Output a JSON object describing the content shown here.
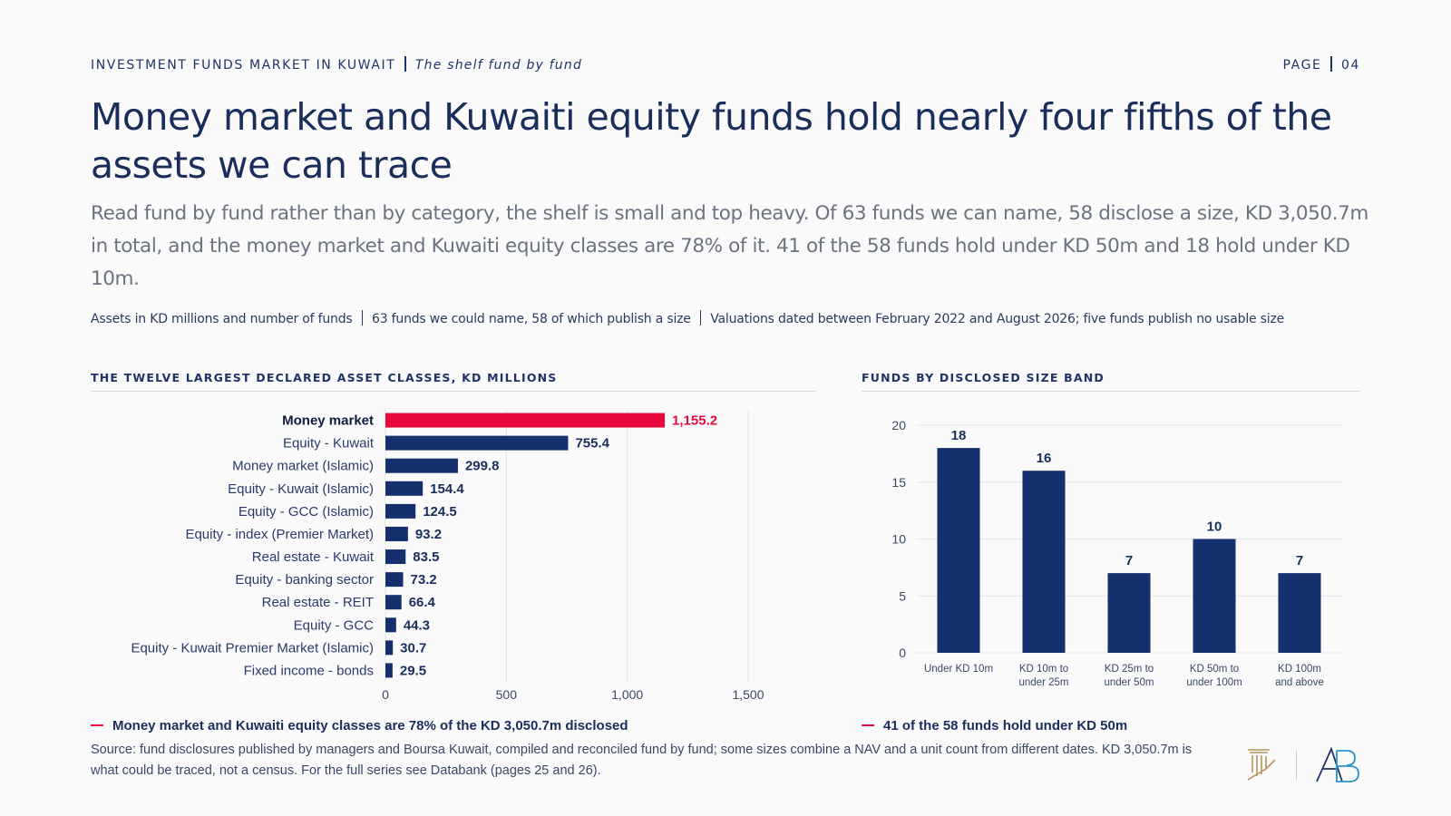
{
  "header": {
    "section": "INVESTMENT FUNDS MARKET IN KUWAIT",
    "subsection": "The shelf fund by fund",
    "page_label": "PAGE",
    "page_number": "04"
  },
  "title": "Money market and Kuwaiti equity funds hold nearly four fifths of the assets we can trace",
  "dek": "Read fund by fund rather than by category, the shelf is small and top heavy. Of 63 funds we can name, 58 disclose a size, KD 3,050.7m in total, and the money market and Kuwaiti equity classes are 78% of it. 41 of the 58 funds hold under KD 50m and 18 hold under KD 10m.",
  "meta": {
    "units": "Assets in KD millions and number of funds",
    "coverage": "63 funds we could name, 58 of which publish a size",
    "dates": "Valuations dated between February 2022 and August 2026; five funds publish no usable size"
  },
  "colors": {
    "accent": "#e8083e",
    "navy": "#14306e",
    "grid": "#e3e5ea"
  },
  "chart_data": [
    {
      "type": "bar",
      "orientation": "horizontal",
      "title": "THE TWELVE LARGEST DECLARED ASSET CLASSES, KD MILLIONS",
      "categories": [
        "Money market",
        "Equity - Kuwait",
        "Money market (Islamic)",
        "Equity - Kuwait (Islamic)",
        "Equity - GCC (Islamic)",
        "Equity - index (Premier Market)",
        "Real estate - Kuwait",
        "Equity - banking sector",
        "Real estate - REIT",
        "Equity - GCC",
        "Equity - Kuwait Premier Market (Islamic)",
        "Fixed income - bonds"
      ],
      "values": [
        1155.2,
        755.4,
        299.8,
        154.4,
        124.5,
        93.2,
        83.5,
        73.2,
        66.4,
        44.3,
        30.7,
        29.5
      ],
      "value_labels": [
        "1,155.2",
        "755.4",
        "299.8",
        "154.4",
        "124.5",
        "93.2",
        "83.5",
        "73.2",
        "66.4",
        "44.3",
        "30.7",
        "29.5"
      ],
      "highlight_index": 0,
      "xlim": [
        0,
        1500
      ],
      "xticks": [
        0,
        500,
        1000,
        1500
      ],
      "xtick_labels": [
        "0",
        "500",
        "1,000",
        "1,500"
      ],
      "grid": "vertical",
      "note": "Money market and Kuwaiti equity classes are 78% of the KD 3,050.7m disclosed"
    },
    {
      "type": "bar",
      "title": "FUNDS BY DISCLOSED SIZE BAND",
      "categories": [
        [
          "Under KD 10m"
        ],
        [
          "KD 10m to",
          "under 25m"
        ],
        [
          "KD 25m to",
          "under 50m"
        ],
        [
          "KD 50m to",
          "under 100m"
        ],
        [
          "KD 100m",
          "and above"
        ]
      ],
      "values": [
        18,
        16,
        7,
        10,
        7
      ],
      "ylim": [
        0,
        20
      ],
      "yticks": [
        0,
        5,
        10,
        15,
        20
      ],
      "grid": "horizontal",
      "note": "41 of the 58 funds hold under KD 50m"
    }
  ],
  "source": "Source: fund disclosures published by managers and Boursa Kuwait, compiled and reconciled fund by fund; some sizes combine a NAV and a unit count from different dates. KD 3,050.7m is what could be traced, not a census. For the full series see Databank (pages 25 and 26).",
  "logos": {
    "left": "columns-logo",
    "right": "ab-monogram-logo"
  }
}
